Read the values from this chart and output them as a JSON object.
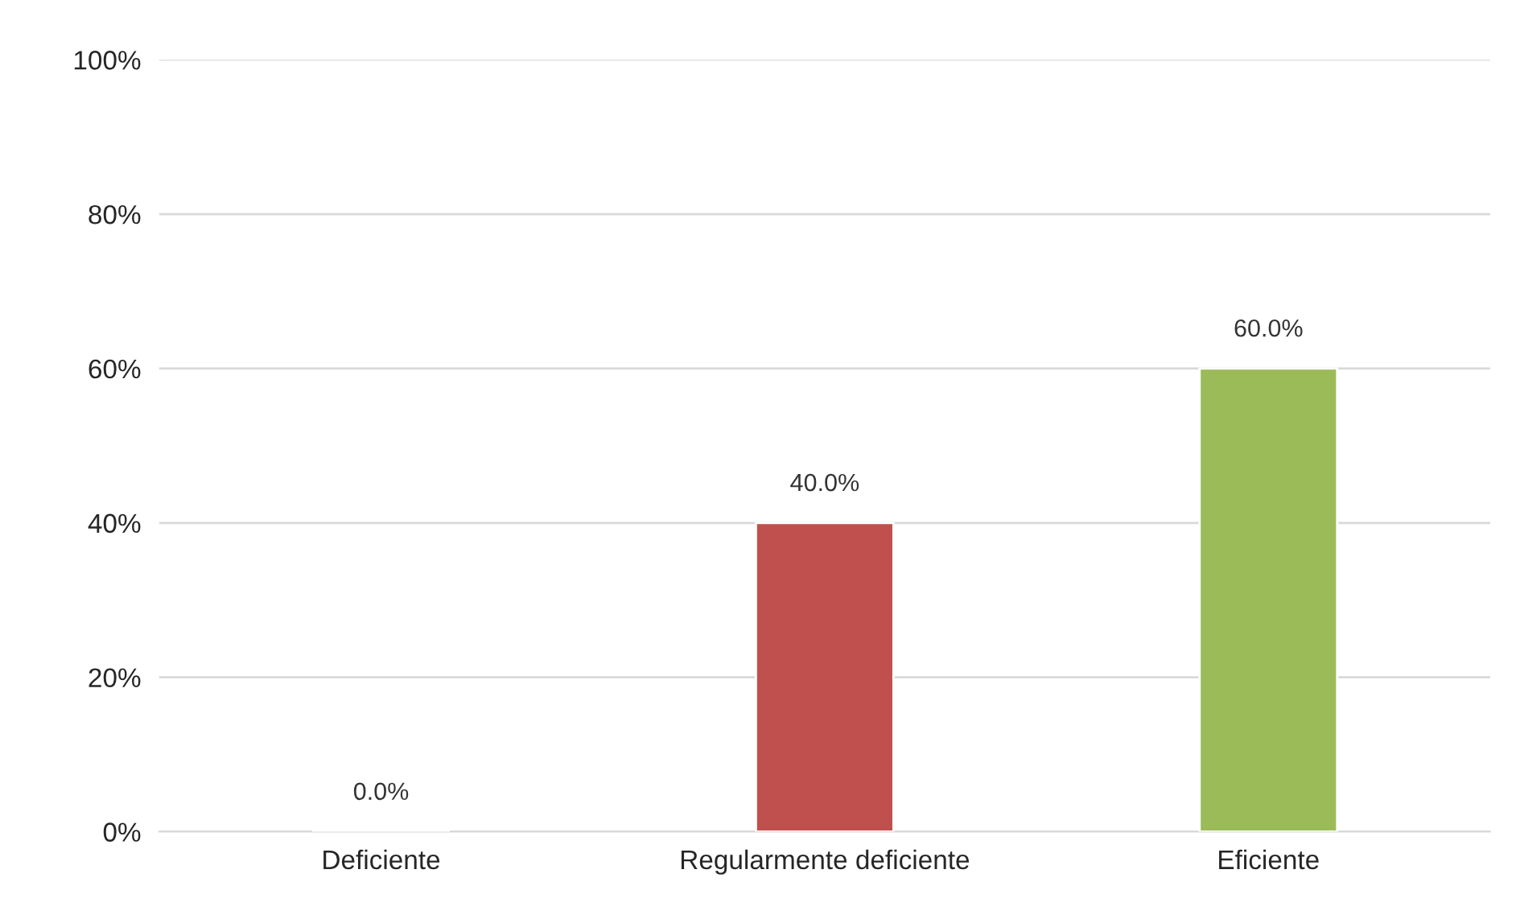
{
  "chart_data": {
    "type": "bar",
    "categories": [
      "Deficiente",
      "Regularmente deficiente",
      "Eficiente"
    ],
    "values": [
      0.0,
      40.0,
      60.0
    ],
    "colors": [
      null,
      "#c0504d",
      "#9bbb59"
    ],
    "value_labels": [
      "0.0%",
      "40.0%",
      "60.0%"
    ],
    "ylim": [
      0,
      100
    ],
    "yticks": [
      {
        "value": 0,
        "label": "0%"
      },
      {
        "value": 20,
        "label": "20%"
      },
      {
        "value": 40,
        "label": "40%"
      },
      {
        "value": 60,
        "label": "60%"
      },
      {
        "value": 80,
        "label": "80%"
      },
      {
        "value": 100,
        "label": "100%"
      }
    ],
    "grid": "y",
    "legend": false
  }
}
